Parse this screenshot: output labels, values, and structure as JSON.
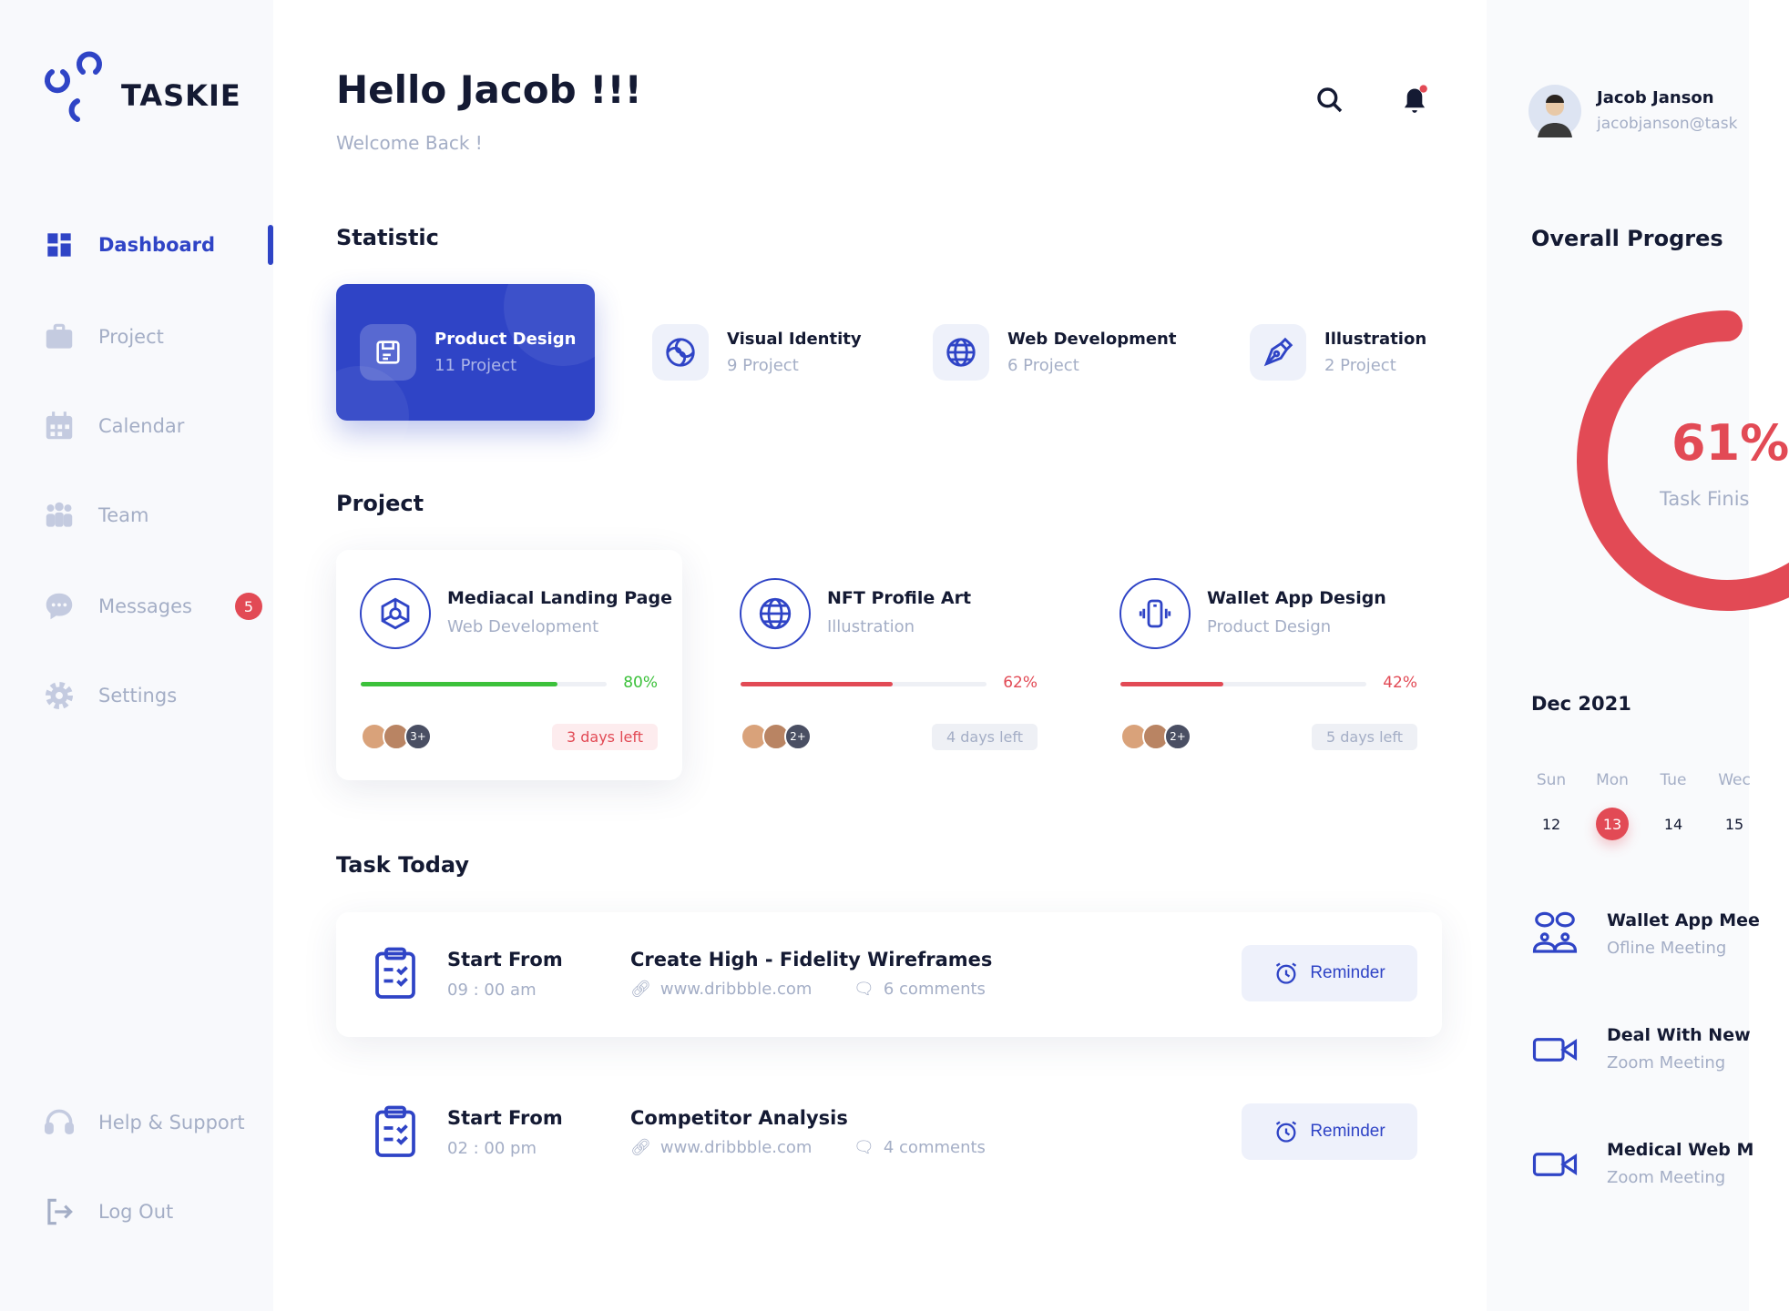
{
  "brand": {
    "name": "TASKIE"
  },
  "sidebar": {
    "items": [
      {
        "label": "Dashboard",
        "icon": "grid-icon",
        "active": true
      },
      {
        "label": "Project",
        "icon": "briefcase-icon"
      },
      {
        "label": "Calendar",
        "icon": "calendar-icon"
      },
      {
        "label": "Team",
        "icon": "team-icon"
      },
      {
        "label": "Messages",
        "icon": "chat-icon",
        "badge": "5"
      },
      {
        "label": "Settings",
        "icon": "gear-icon"
      }
    ],
    "bottom": [
      {
        "label": "Help & Support",
        "icon": "headset-icon"
      },
      {
        "label": "Log Out",
        "icon": "logout-icon"
      }
    ]
  },
  "header": {
    "title": "Hello Jacob !!!",
    "subtitle": "Welcome Back !"
  },
  "statistic": {
    "title": "Statistic",
    "items": [
      {
        "title": "Product Design",
        "sub": "11 Project",
        "active": true
      },
      {
        "title": "Visual Identity",
        "sub": "9 Project"
      },
      {
        "title": "Web Development",
        "sub": "6 Project"
      },
      {
        "title": "Illustration",
        "sub": "2 Project"
      }
    ]
  },
  "projects": {
    "title": "Project",
    "items": [
      {
        "title": "Mediacal Landing Page",
        "sub": "Web Development",
        "progress": 80,
        "progress_label": "80%",
        "color": "#3cc13b",
        "extra": "3+",
        "deadline": "3 days left"
      },
      {
        "title": "NFT Profile Art",
        "sub": "Illustration",
        "progress": 62,
        "progress_label": "62%",
        "color": "#e24a55",
        "extra": "2+",
        "deadline": "4 days left"
      },
      {
        "title": "Wallet App Design",
        "sub": "Product Design",
        "progress": 42,
        "progress_label": "42%",
        "color": "#e24a55",
        "extra": "2+",
        "deadline": "5 days left"
      }
    ]
  },
  "tasks": {
    "title": "Task Today",
    "items": [
      {
        "start_label": "Start From",
        "time": "09 : 00 am",
        "title": "Create High - Fidelity Wireframes",
        "link": "www.dribbble.com",
        "comments": "6 comments",
        "button": "Reminder"
      },
      {
        "start_label": "Start From",
        "time": "02 : 00 pm",
        "title": "Competitor Analysis",
        "link": "www.dribbble.com",
        "comments": "4 comments",
        "button": "Reminder"
      }
    ]
  },
  "user": {
    "name": "Jacob Janson",
    "email": "jacobjanson@task"
  },
  "progress": {
    "title": "Overall Progres",
    "value": 61,
    "label": "61%",
    "caption": "Task Finis",
    "color": "#e24a55"
  },
  "calendar": {
    "month": "Dec 2021",
    "days": [
      {
        "name": "Sun",
        "date": "12"
      },
      {
        "name": "Mon",
        "date": "13",
        "selected": true
      },
      {
        "name": "Tue",
        "date": "14"
      },
      {
        "name": "Wec",
        "date": "15"
      }
    ]
  },
  "meetings": [
    {
      "title": "Wallet App Mee",
      "sub": "Ofline Meeting",
      "icon": "people-chat-icon"
    },
    {
      "title": "Deal With New",
      "sub": "Zoom Meeting",
      "icon": "video-camera-icon"
    },
    {
      "title": "Medical Web M",
      "sub": "Zoom Meeting",
      "icon": "video-camera-icon"
    }
  ],
  "colors": {
    "accent": "#2f44c6",
    "danger": "#e24a55",
    "success": "#3cc13b",
    "muted": "#a4aec6"
  }
}
